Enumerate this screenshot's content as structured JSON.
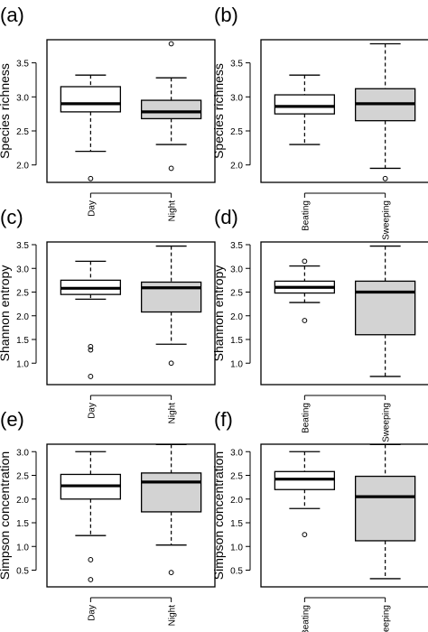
{
  "figure": {
    "panels": [
      {
        "label": "(a)",
        "ylabel": "Species richness"
      },
      {
        "label": "(b)",
        "ylabel": "Species richness"
      },
      {
        "label": "(c)",
        "ylabel": "Shannon entropy"
      },
      {
        "label": "(d)",
        "ylabel": "Shannon entropy"
      },
      {
        "label": "(e)",
        "ylabel": "Simpson concentration"
      },
      {
        "label": "(f)",
        "ylabel": "Simpson concentration"
      }
    ],
    "colors": {
      "group1_fill": "#ffffff",
      "group2_fill": "#d3d3d3",
      "stroke": "#000000"
    }
  },
  "chart_data": [
    {
      "type": "box",
      "title": "(a)",
      "ylabel": "Species richness",
      "ylim": [
        1.85,
        3.8
      ],
      "yticks": [
        2.0,
        2.5,
        3.0,
        3.5
      ],
      "ytick_labels": [
        "2.0",
        "2.5",
        "3.0",
        "3.5"
      ],
      "categories": [
        "Day",
        "Night"
      ],
      "boxes": [
        {
          "whisker_low": 2.2,
          "q1": 2.78,
          "median": 2.9,
          "q3": 3.15,
          "whisker_high": 3.32,
          "outliers": [
            1.8
          ]
        },
        {
          "whisker_low": 2.3,
          "q1": 2.68,
          "median": 2.78,
          "q3": 2.95,
          "whisker_high": 3.28,
          "outliers": [
            1.95,
            3.78
          ]
        }
      ]
    },
    {
      "type": "box",
      "title": "(b)",
      "ylabel": "Species richness",
      "ylim": [
        1.85,
        3.8
      ],
      "yticks": [
        2.0,
        2.5,
        3.0,
        3.5
      ],
      "ytick_labels": [
        "2.0",
        "2.5",
        "3.0",
        "3.5"
      ],
      "categories": [
        "Beating",
        "Sweeping"
      ],
      "boxes": [
        {
          "whisker_low": 2.3,
          "q1": 2.75,
          "median": 2.86,
          "q3": 3.03,
          "whisker_high": 3.32,
          "outliers": []
        },
        {
          "whisker_low": 1.95,
          "q1": 2.65,
          "median": 2.9,
          "q3": 3.12,
          "whisker_high": 3.78,
          "outliers": [
            1.8
          ]
        }
      ]
    },
    {
      "type": "box",
      "title": "(c)",
      "ylabel": "Shannon entropy",
      "ylim": [
        0.7,
        3.5
      ],
      "yticks": [
        1.0,
        1.5,
        2.0,
        2.5,
        3.0,
        3.5
      ],
      "ytick_labels": [
        "1.0",
        "1.5",
        "2.0",
        "2.5",
        "3.0",
        "3.5"
      ],
      "categories": [
        "Day",
        "Night"
      ],
      "boxes": [
        {
          "whisker_low": 2.35,
          "q1": 2.45,
          "median": 2.58,
          "q3": 2.75,
          "whisker_high": 3.15,
          "outliers": [
            0.72,
            1.28,
            1.35
          ]
        },
        {
          "whisker_low": 1.4,
          "q1": 2.08,
          "median": 2.59,
          "q3": 2.71,
          "whisker_high": 3.47,
          "outliers": [
            1.0
          ]
        }
      ]
    },
    {
      "type": "box",
      "title": "(d)",
      "ylabel": "Shannon entropy",
      "ylim": [
        0.7,
        3.5
      ],
      "yticks": [
        1.0,
        1.5,
        2.0,
        2.5,
        3.0,
        3.5
      ],
      "ytick_labels": [
        "1.0",
        "1.5",
        "2.0",
        "2.5",
        "3.0",
        "3.5"
      ],
      "categories": [
        "Beating",
        "Sweeping"
      ],
      "boxes": [
        {
          "whisker_low": 2.28,
          "q1": 2.48,
          "median": 2.6,
          "q3": 2.73,
          "whisker_high": 3.05,
          "outliers": [
            1.9,
            3.15
          ]
        },
        {
          "whisker_low": 0.72,
          "q1": 1.6,
          "median": 2.5,
          "q3": 2.73,
          "whisker_high": 3.47,
          "outliers": []
        }
      ]
    },
    {
      "type": "box",
      "title": "(e)",
      "ylabel": "Simpson concentration",
      "ylim": [
        0.3,
        3.1
      ],
      "yticks": [
        0.5,
        1.0,
        1.5,
        2.0,
        2.5,
        3.0
      ],
      "ytick_labels": [
        "0.5",
        "1.0",
        "1.5",
        "2.0",
        "2.5",
        "3.0"
      ],
      "categories": [
        "Day",
        "Night"
      ],
      "boxes": [
        {
          "whisker_low": 1.23,
          "q1": 2.0,
          "median": 2.28,
          "q3": 2.52,
          "whisker_high": 3.0,
          "outliers": [
            0.3,
            0.72
          ]
        },
        {
          "whisker_low": 1.03,
          "q1": 1.73,
          "median": 2.36,
          "q3": 2.55,
          "whisker_high": 3.15,
          "outliers": [
            0.45
          ]
        }
      ]
    },
    {
      "type": "box",
      "title": "(f)",
      "ylabel": "Simpson concentration",
      "ylim": [
        0.3,
        3.1
      ],
      "yticks": [
        0.5,
        1.0,
        1.5,
        2.0,
        2.5,
        3.0
      ],
      "ytick_labels": [
        "0.5",
        "1.0",
        "1.5",
        "2.0",
        "2.5",
        "3.0"
      ],
      "categories": [
        "Beating",
        "Sweeping"
      ],
      "boxes": [
        {
          "whisker_low": 1.8,
          "q1": 2.2,
          "median": 2.42,
          "q3": 2.58,
          "whisker_high": 3.0,
          "outliers": [
            1.25
          ]
        },
        {
          "whisker_low": 0.32,
          "q1": 1.12,
          "median": 2.05,
          "q3": 2.48,
          "whisker_high": 3.15,
          "outliers": []
        }
      ]
    }
  ]
}
